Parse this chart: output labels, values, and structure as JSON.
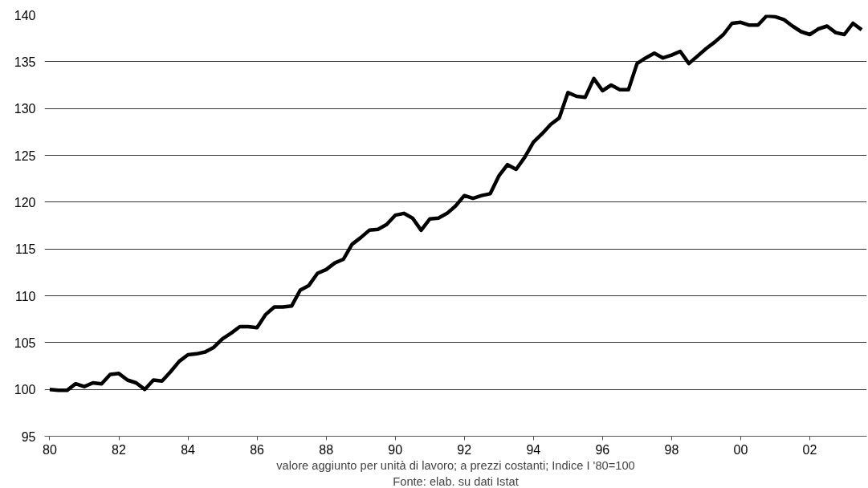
{
  "chart_data": {
    "type": "line",
    "x": [
      1980,
      1980.25,
      1980.5,
      1980.75,
      1981,
      1981.25,
      1981.5,
      1981.75,
      1982,
      1982.25,
      1982.5,
      1982.75,
      1983,
      1983.25,
      1983.5,
      1983.75,
      1984,
      1984.25,
      1984.5,
      1984.75,
      1985,
      1985.25,
      1985.5,
      1985.75,
      1986,
      1986.25,
      1986.5,
      1986.75,
      1987,
      1987.25,
      1987.5,
      1987.75,
      1988,
      1988.25,
      1988.5,
      1988.75,
      1989,
      1989.25,
      1989.5,
      1989.75,
      1990,
      1990.25,
      1990.5,
      1990.75,
      1991,
      1991.25,
      1991.5,
      1991.75,
      1992,
      1992.25,
      1992.5,
      1992.75,
      1993,
      1993.25,
      1993.5,
      1993.75,
      1994,
      1994.25,
      1994.5,
      1994.75,
      1995,
      1995.25,
      1995.5,
      1995.75,
      1996,
      1996.25,
      1996.5,
      1996.75,
      1997,
      1997.25,
      1997.5,
      1997.75,
      1998,
      1998.25,
      1998.5,
      1998.75,
      1999,
      1999.25,
      1999.5,
      1999.75,
      2000,
      2000.25,
      2000.5,
      2000.75,
      2001,
      2001.25,
      2001.5,
      2001.75,
      2002,
      2002.25,
      2002.5,
      2002.75,
      2003,
      2003.25,
      2003.5
    ],
    "series": [
      {
        "color": "#000000",
        "values": [
          100.0,
          99.9,
          99.9,
          100.6,
          100.3,
          100.7,
          100.6,
          101.6,
          101.7,
          101.0,
          100.7,
          100.0,
          101.0,
          100.9,
          101.9,
          103.0,
          103.7,
          103.8,
          104.0,
          104.5,
          105.4,
          106.0,
          106.7,
          106.7,
          106.6,
          108.0,
          108.8,
          108.8,
          108.9,
          110.6,
          111.1,
          112.4,
          112.8,
          113.5,
          113.9,
          115.5,
          116.2,
          117.0,
          117.1,
          117.6,
          118.6,
          118.8,
          118.3,
          117.0,
          118.2,
          118.3,
          118.8,
          119.6,
          120.7,
          120.4,
          120.7,
          120.9,
          122.8,
          124.0,
          123.5,
          124.8,
          126.4,
          127.3,
          128.3,
          129.0,
          131.7,
          131.3,
          131.2,
          133.2,
          131.9,
          132.5,
          132.0,
          132.0,
          134.8,
          135.4,
          135.9,
          135.4,
          135.7,
          136.1,
          134.8,
          135.6,
          136.4,
          137.1,
          137.9,
          139.1,
          139.2,
          138.9,
          138.9,
          139.9,
          139.8,
          139.5,
          138.8,
          138.2,
          137.9,
          138.5,
          138.8,
          138.1,
          137.9,
          139.1,
          138.4
        ]
      }
    ],
    "xlim": [
      1979.85,
      2003.65
    ],
    "xticks": [
      {
        "value": 1980,
        "label": "80"
      },
      {
        "value": 1982,
        "label": "82"
      },
      {
        "value": 1984,
        "label": "84"
      },
      {
        "value": 1986,
        "label": "86"
      },
      {
        "value": 1988,
        "label": "88"
      },
      {
        "value": 1990,
        "label": "90"
      },
      {
        "value": 1992,
        "label": "92"
      },
      {
        "value": 1994,
        "label": "94"
      },
      {
        "value": 1996,
        "label": "96"
      },
      {
        "value": 1998,
        "label": "98"
      },
      {
        "value": 2000,
        "label": "00"
      },
      {
        "value": 2002,
        "label": "02"
      }
    ],
    "ylim": [
      95,
      140
    ],
    "yticks": [
      95,
      100,
      105,
      110,
      115,
      120,
      125,
      130,
      135,
      140
    ],
    "grid": "y",
    "marker": "none",
    "line_style": "solid",
    "annotations": [
      "valore aggiunto per unità di lavoro; a prezzi costanti; Indice I '80=100",
      "Fonte: elab. su dati Istat"
    ]
  }
}
